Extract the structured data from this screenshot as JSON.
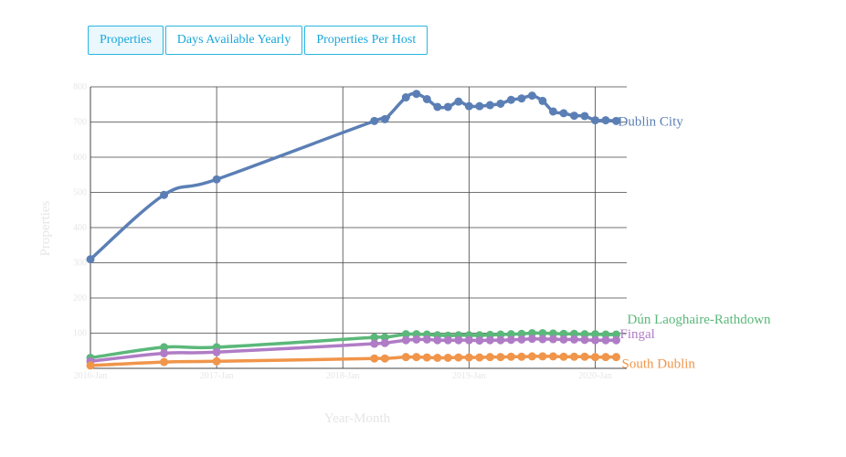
{
  "tabs": [
    {
      "label": "Properties",
      "active": true
    },
    {
      "label": "Days Available Yearly",
      "active": false
    },
    {
      "label": "Properties Per Host",
      "active": false
    }
  ],
  "chart_data": {
    "type": "line",
    "ylabel": "Properties",
    "xlabel": "Year-Month",
    "x_ticks": [
      "2016-Jan",
      "2017-Jan",
      "2018-Jan",
      "2019-Jan",
      "2020-Jan"
    ],
    "y_ticks": [
      "800",
      "700",
      "600",
      "500",
      "400",
      "300",
      "200",
      "100"
    ],
    "xlim": [
      "2016-01",
      "2020-04"
    ],
    "ylim": [
      0,
      800
    ],
    "grid": true,
    "series": [
      {
        "name": "Dublin City",
        "color": "#5b7fb5",
        "points": [
          [
            "2016-01",
            310
          ],
          [
            "2016-08",
            493
          ],
          [
            "2017-01",
            537
          ],
          [
            "2018-04",
            703
          ],
          [
            "2018-05",
            708
          ],
          [
            "2018-07",
            770
          ],
          [
            "2018-08",
            780
          ],
          [
            "2018-09",
            765
          ],
          [
            "2018-10",
            743
          ],
          [
            "2018-11",
            743
          ],
          [
            "2018-12",
            758
          ],
          [
            "2019-01",
            745
          ],
          [
            "2019-02",
            745
          ],
          [
            "2019-03",
            748
          ],
          [
            "2019-04",
            752
          ],
          [
            "2019-05",
            763
          ],
          [
            "2019-06",
            767
          ],
          [
            "2019-07",
            775
          ],
          [
            "2019-08",
            760
          ],
          [
            "2019-09",
            730
          ],
          [
            "2019-10",
            725
          ],
          [
            "2019-11",
            718
          ],
          [
            "2019-12",
            717
          ],
          [
            "2020-01",
            705
          ],
          [
            "2020-02",
            705
          ],
          [
            "2020-03",
            703
          ]
        ]
      },
      {
        "name": "Dún Laoghaire-Rathdown",
        "color": "#5bb87a",
        "points": [
          [
            "2016-01",
            30
          ],
          [
            "2016-08",
            60
          ],
          [
            "2017-01",
            60
          ],
          [
            "2018-04",
            88
          ],
          [
            "2018-05",
            88
          ],
          [
            "2018-07",
            97
          ],
          [
            "2018-08",
            97
          ],
          [
            "2018-09",
            96
          ],
          [
            "2018-10",
            94
          ],
          [
            "2018-11",
            93
          ],
          [
            "2018-12",
            94
          ],
          [
            "2019-01",
            94
          ],
          [
            "2019-02",
            94
          ],
          [
            "2019-03",
            95
          ],
          [
            "2019-04",
            96
          ],
          [
            "2019-05",
            97
          ],
          [
            "2019-06",
            98
          ],
          [
            "2019-07",
            100
          ],
          [
            "2019-08",
            100
          ],
          [
            "2019-09",
            99
          ],
          [
            "2019-10",
            98
          ],
          [
            "2019-11",
            98
          ],
          [
            "2019-12",
            97
          ],
          [
            "2020-01",
            97
          ],
          [
            "2020-02",
            96
          ],
          [
            "2020-03",
            96
          ]
        ]
      },
      {
        "name": "Fingal",
        "color": "#b07cc6",
        "points": [
          [
            "2016-01",
            20
          ],
          [
            "2016-08",
            43
          ],
          [
            "2017-01",
            46
          ],
          [
            "2018-04",
            70
          ],
          [
            "2018-05",
            72
          ],
          [
            "2018-07",
            80
          ],
          [
            "2018-08",
            82
          ],
          [
            "2018-09",
            82
          ],
          [
            "2018-10",
            80
          ],
          [
            "2018-11",
            80
          ],
          [
            "2018-12",
            80
          ],
          [
            "2019-01",
            80
          ],
          [
            "2019-02",
            79
          ],
          [
            "2019-03",
            80
          ],
          [
            "2019-04",
            80
          ],
          [
            "2019-05",
            81
          ],
          [
            "2019-06",
            82
          ],
          [
            "2019-07",
            84
          ],
          [
            "2019-08",
            83
          ],
          [
            "2019-09",
            83
          ],
          [
            "2019-10",
            82
          ],
          [
            "2019-11",
            82
          ],
          [
            "2019-12",
            81
          ],
          [
            "2020-01",
            80
          ],
          [
            "2020-02",
            80
          ],
          [
            "2020-03",
            80
          ]
        ]
      },
      {
        "name": "South Dublin",
        "color": "#f0954a",
        "points": [
          [
            "2016-01",
            8
          ],
          [
            "2016-08",
            18
          ],
          [
            "2017-01",
            20
          ],
          [
            "2018-04",
            28
          ],
          [
            "2018-05",
            28
          ],
          [
            "2018-07",
            32
          ],
          [
            "2018-08",
            32
          ],
          [
            "2018-09",
            31
          ],
          [
            "2018-10",
            30
          ],
          [
            "2018-11",
            30
          ],
          [
            "2018-12",
            31
          ],
          [
            "2019-01",
            31
          ],
          [
            "2019-02",
            31
          ],
          [
            "2019-03",
            32
          ],
          [
            "2019-04",
            32
          ],
          [
            "2019-05",
            33
          ],
          [
            "2019-06",
            33
          ],
          [
            "2019-07",
            34
          ],
          [
            "2019-08",
            34
          ],
          [
            "2019-09",
            34
          ],
          [
            "2019-10",
            33
          ],
          [
            "2019-11",
            33
          ],
          [
            "2019-12",
            33
          ],
          [
            "2020-01",
            32
          ],
          [
            "2020-02",
            32
          ],
          [
            "2020-03",
            32
          ]
        ]
      }
    ]
  }
}
